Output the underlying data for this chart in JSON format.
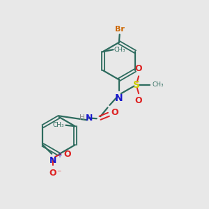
{
  "background_color": "#e8e8e8",
  "bond_color": "#2d6b5e",
  "br_color": "#cc6600",
  "n_color": "#1a1acc",
  "s_color": "#cccc00",
  "o_color": "#dd2222",
  "figsize": [
    3.0,
    3.0
  ],
  "dpi": 100,
  "xlim": [
    0.0,
    1.0
  ],
  "ylim": [
    0.0,
    1.0
  ]
}
